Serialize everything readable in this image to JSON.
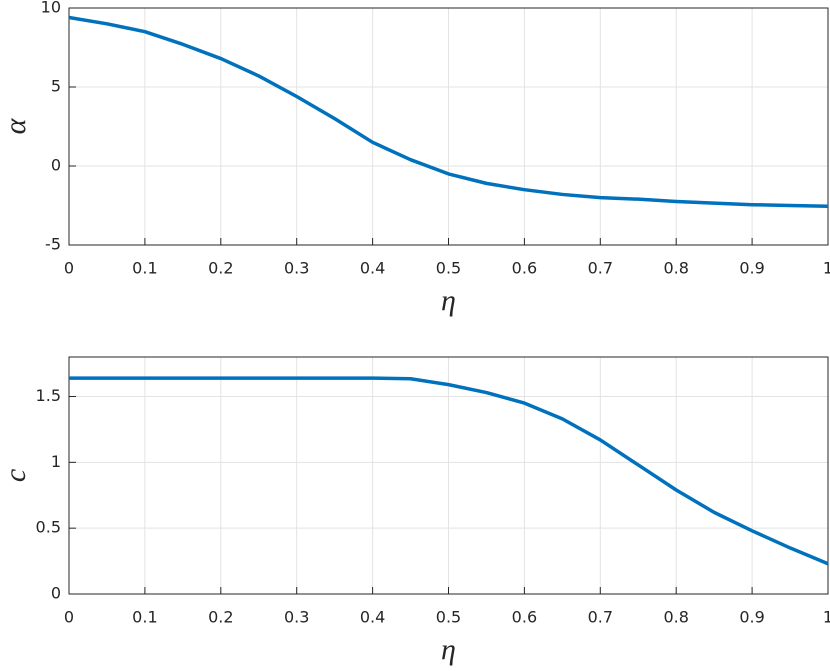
{
  "chart_data": [
    {
      "type": "line",
      "xlabel": "η",
      "ylabel": "α",
      "grid": true,
      "x": [
        0,
        0.05,
        0.1,
        0.15,
        0.2,
        0.25,
        0.3,
        0.35,
        0.4,
        0.45,
        0.5,
        0.55,
        0.6,
        0.65,
        0.7,
        0.75,
        0.8,
        0.85,
        0.9,
        0.95,
        1
      ],
      "series": [
        {
          "color": "#0072bd",
          "values": [
            9.4,
            9.0,
            8.5,
            7.7,
            6.8,
            5.7,
            4.4,
            3.0,
            1.5,
            0.4,
            -0.5,
            -1.1,
            -1.5,
            -1.8,
            -2.0,
            -2.1,
            -2.25,
            -2.35,
            -2.45,
            -2.5,
            -2.55
          ]
        }
      ],
      "xlim": [
        0,
        1
      ],
      "xticks": [
        0,
        0.1,
        0.2,
        0.3,
        0.4,
        0.5,
        0.6,
        0.7,
        0.8,
        0.9,
        1
      ],
      "ylim": [
        -5,
        10
      ],
      "yticks": [
        -5,
        0,
        5,
        10
      ]
    },
    {
      "type": "line",
      "xlabel": "η",
      "ylabel": "c",
      "grid": true,
      "x": [
        0,
        0.05,
        0.1,
        0.15,
        0.2,
        0.25,
        0.3,
        0.35,
        0.4,
        0.45,
        0.5,
        0.55,
        0.6,
        0.65,
        0.7,
        0.75,
        0.8,
        0.85,
        0.9,
        0.95,
        1
      ],
      "series": [
        {
          "color": "#0072bd",
          "values": [
            1.64,
            1.64,
            1.64,
            1.64,
            1.64,
            1.64,
            1.64,
            1.64,
            1.64,
            1.635,
            1.59,
            1.53,
            1.45,
            1.33,
            1.17,
            0.98,
            0.79,
            0.62,
            0.48,
            0.35,
            0.23
          ]
        }
      ],
      "xlim": [
        0,
        1
      ],
      "xticks": [
        0,
        0.1,
        0.2,
        0.3,
        0.4,
        0.5,
        0.6,
        0.7,
        0.8,
        0.9,
        1
      ],
      "ylim": [
        0,
        1.8
      ],
      "yticks": [
        0,
        0.5,
        1,
        1.5
      ]
    }
  ]
}
